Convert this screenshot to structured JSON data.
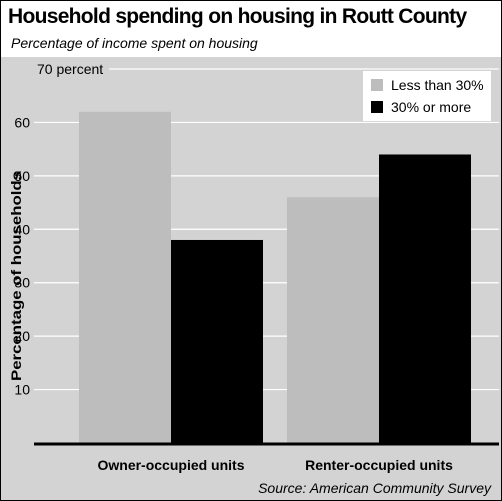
{
  "title": "Household spending on housing in Routt County",
  "subtitle": "Percentage of income spent on housing",
  "source": "Source: American Community Survey",
  "colors": {
    "panel_background": "#d3d3d3",
    "series_less": "#bdbdbd",
    "series_more": "#000000"
  },
  "chart_data": {
    "type": "bar",
    "categories": [
      "Owner-occupied units",
      "Renter-occupied units"
    ],
    "series": [
      {
        "name": "Less than 30%",
        "values": [
          62,
          46
        ],
        "color": "#bdbdbd"
      },
      {
        "name": "30% or more",
        "values": [
          38,
          54
        ],
        "color": "#000000"
      }
    ],
    "ylabel": "Percentage of households",
    "ylim": [
      0,
      70
    ],
    "yticks": [
      10,
      20,
      30,
      40,
      50,
      60,
      70
    ],
    "ytick_labels": [
      "10",
      "20",
      "30",
      "40",
      "50",
      "60",
      "70 percent"
    ],
    "grid": true,
    "legend": "top-right"
  }
}
